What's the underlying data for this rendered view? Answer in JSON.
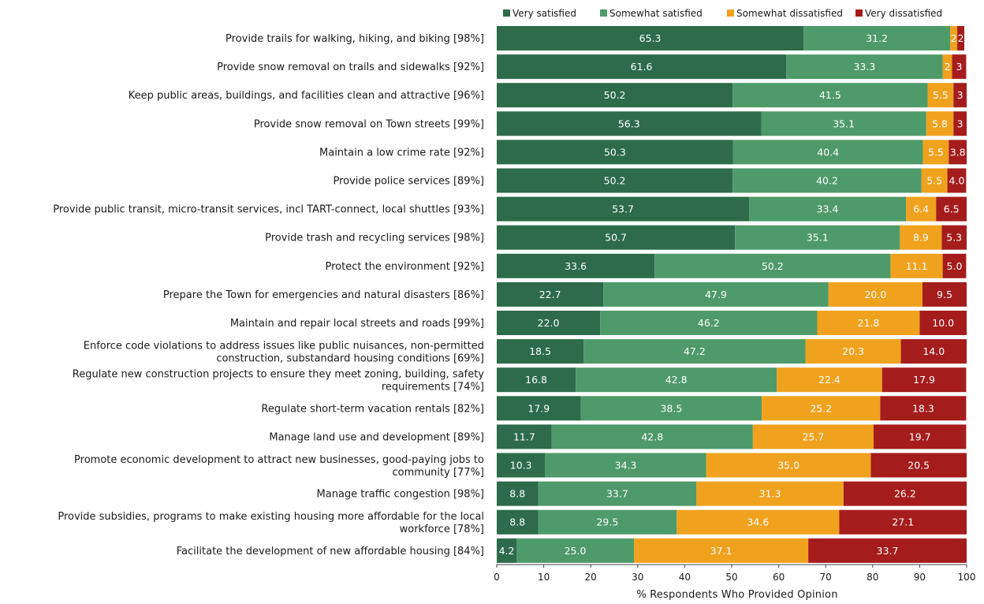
{
  "chart_data": {
    "type": "bar",
    "orientation": "horizontal",
    "stacked": true,
    "title": "",
    "xlabel": "% Respondents Who Provided Opinion",
    "ylabel": "",
    "xlim": [
      0,
      100
    ],
    "xticks": [
      0,
      10,
      20,
      30,
      40,
      50,
      60,
      70,
      80,
      90,
      100
    ],
    "legend_position": "top",
    "grid": false,
    "categories": [
      "Provide trails for walking, hiking, and biking [98%]",
      "Provide snow removal on trails and sidewalks [92%]",
      "Keep public areas, buildings, and facilities clean and attractive [96%]",
      "Provide snow removal on Town streets [99%]",
      "Maintain a low crime rate [92%]",
      "Provide police services [89%]",
      "Provide public transit, micro-transit services, incl TART-connect, local shuttles [93%]",
      "Provide trash and recycling services [98%]",
      "Protect the environment [92%]",
      "Prepare the Town for emergencies and natural disasters [86%]",
      "Maintain and repair local streets and roads [99%]",
      "Enforce code violations to address issues like public nuisances, non-permitted construction, substandard housing conditions [69%]",
      "Regulate new construction projects to ensure they meet zoning, building, safety requirements [74%]",
      "Regulate short-term vacation rentals [82%]",
      "Manage land use and development [89%]",
      "Promote economic development to attract new businesses, good-paying jobs to community [77%]",
      "Manage traffic congestion [98%]",
      "Provide subsidies, programs to make existing housing more affordable for the local workforce [78%]",
      "Facilitate the development of new affordable housing [84%]"
    ],
    "category_lines": [
      [
        "Provide trails for walking, hiking, and biking [98%]"
      ],
      [
        "Provide snow removal on trails and sidewalks [92%]"
      ],
      [
        "Keep public areas, buildings, and facilities clean and attractive [96%]"
      ],
      [
        "Provide snow removal on Town streets [99%]"
      ],
      [
        "Maintain a low crime rate [92%]"
      ],
      [
        "Provide police services [89%]"
      ],
      [
        "Provide public transit, micro-transit services, incl TART-connect, local shuttles [93%]"
      ],
      [
        "Provide trash and recycling services [98%]"
      ],
      [
        "Protect the environment [92%]"
      ],
      [
        "Prepare the Town for emergencies and natural disasters [86%]"
      ],
      [
        "Maintain and repair local streets and roads [99%]"
      ],
      [
        "Enforce code violations to address issues like public nuisances, non-permitted",
        "construction, substandard housing conditions [69%]"
      ],
      [
        "Regulate new construction projects to ensure they meet zoning, building, safety",
        "requirements [74%]"
      ],
      [
        "Regulate short-term vacation rentals [82%]"
      ],
      [
        "Manage land use and development [89%]"
      ],
      [
        "Promote economic development to attract new businesses, good-paying jobs to",
        "community [77%]"
      ],
      [
        "Manage traffic congestion [98%]"
      ],
      [
        "Provide subsidies, programs to make existing housing more affordable for the local",
        "workforce [78%]"
      ],
      [
        "Facilitate the development of new affordable housing [84%]"
      ]
    ],
    "series": [
      {
        "name": "Very satisfied",
        "color": "#2d6b4a",
        "values": [
          65.3,
          61.6,
          50.2,
          56.3,
          50.3,
          50.2,
          53.7,
          50.7,
          33.6,
          22.7,
          22.0,
          18.5,
          16.8,
          17.9,
          11.7,
          10.3,
          8.8,
          8.8,
          4.2
        ],
        "labels": [
          "65.3",
          "61.6",
          "50.2",
          "56.3",
          "50.3",
          "50.2",
          "53.7",
          "50.7",
          "33.6",
          "22.7",
          "22.0",
          "18.5",
          "16.8",
          "17.9",
          "11.7",
          "10.3",
          "8.8",
          "8.8",
          "4.2"
        ]
      },
      {
        "name": "Somewhat satisfied",
        "color": "#4e9a6a",
        "values": [
          31.2,
          33.3,
          41.5,
          35.1,
          40.4,
          40.2,
          33.4,
          35.1,
          50.2,
          47.9,
          46.2,
          47.2,
          42.8,
          38.5,
          42.8,
          34.3,
          33.7,
          29.5,
          25.0
        ],
        "labels": [
          "31.2",
          "33.3",
          "41.5",
          "35.1",
          "40.4",
          "40.2",
          "33.4",
          "35.1",
          "50.2",
          "47.9",
          "46.2",
          "47.2",
          "42.8",
          "38.5",
          "42.8",
          "34.3",
          "33.7",
          "29.5",
          "25.0"
        ]
      },
      {
        "name": "Somewhat dissatisfied",
        "color": "#f0a21e",
        "values": [
          1.5,
          2.0,
          5.5,
          5.8,
          5.5,
          5.5,
          6.4,
          8.9,
          11.1,
          20.0,
          21.8,
          20.3,
          22.4,
          25.2,
          25.7,
          35.0,
          31.3,
          34.6,
          37.1
        ],
        "labels": [
          "2",
          "2",
          "5.5",
          "5.8",
          "5.5",
          "5.5",
          "6.4",
          "8.9",
          "11.1",
          "20.0",
          "21.8",
          "20.3",
          "22.4",
          "25.2",
          "25.7",
          "35.0",
          "31.3",
          "34.6",
          "37.1"
        ]
      },
      {
        "name": "Very dissatisfied",
        "color": "#a51c1c",
        "values": [
          1.5,
          3.0,
          3.0,
          3.0,
          3.8,
          4.0,
          6.5,
          5.3,
          5.0,
          9.5,
          10.0,
          14.0,
          17.9,
          18.3,
          19.7,
          20.5,
          26.2,
          27.1,
          33.7
        ],
        "labels": [
          "2",
          "3",
          "3",
          "3",
          "3.8",
          "4.0",
          "6.5",
          "5.3",
          "5.0",
          "9.5",
          "10.0",
          "14.0",
          "17.9",
          "18.3",
          "19.7",
          "20.5",
          "26.2",
          "27.1",
          "33.7"
        ]
      }
    ]
  }
}
